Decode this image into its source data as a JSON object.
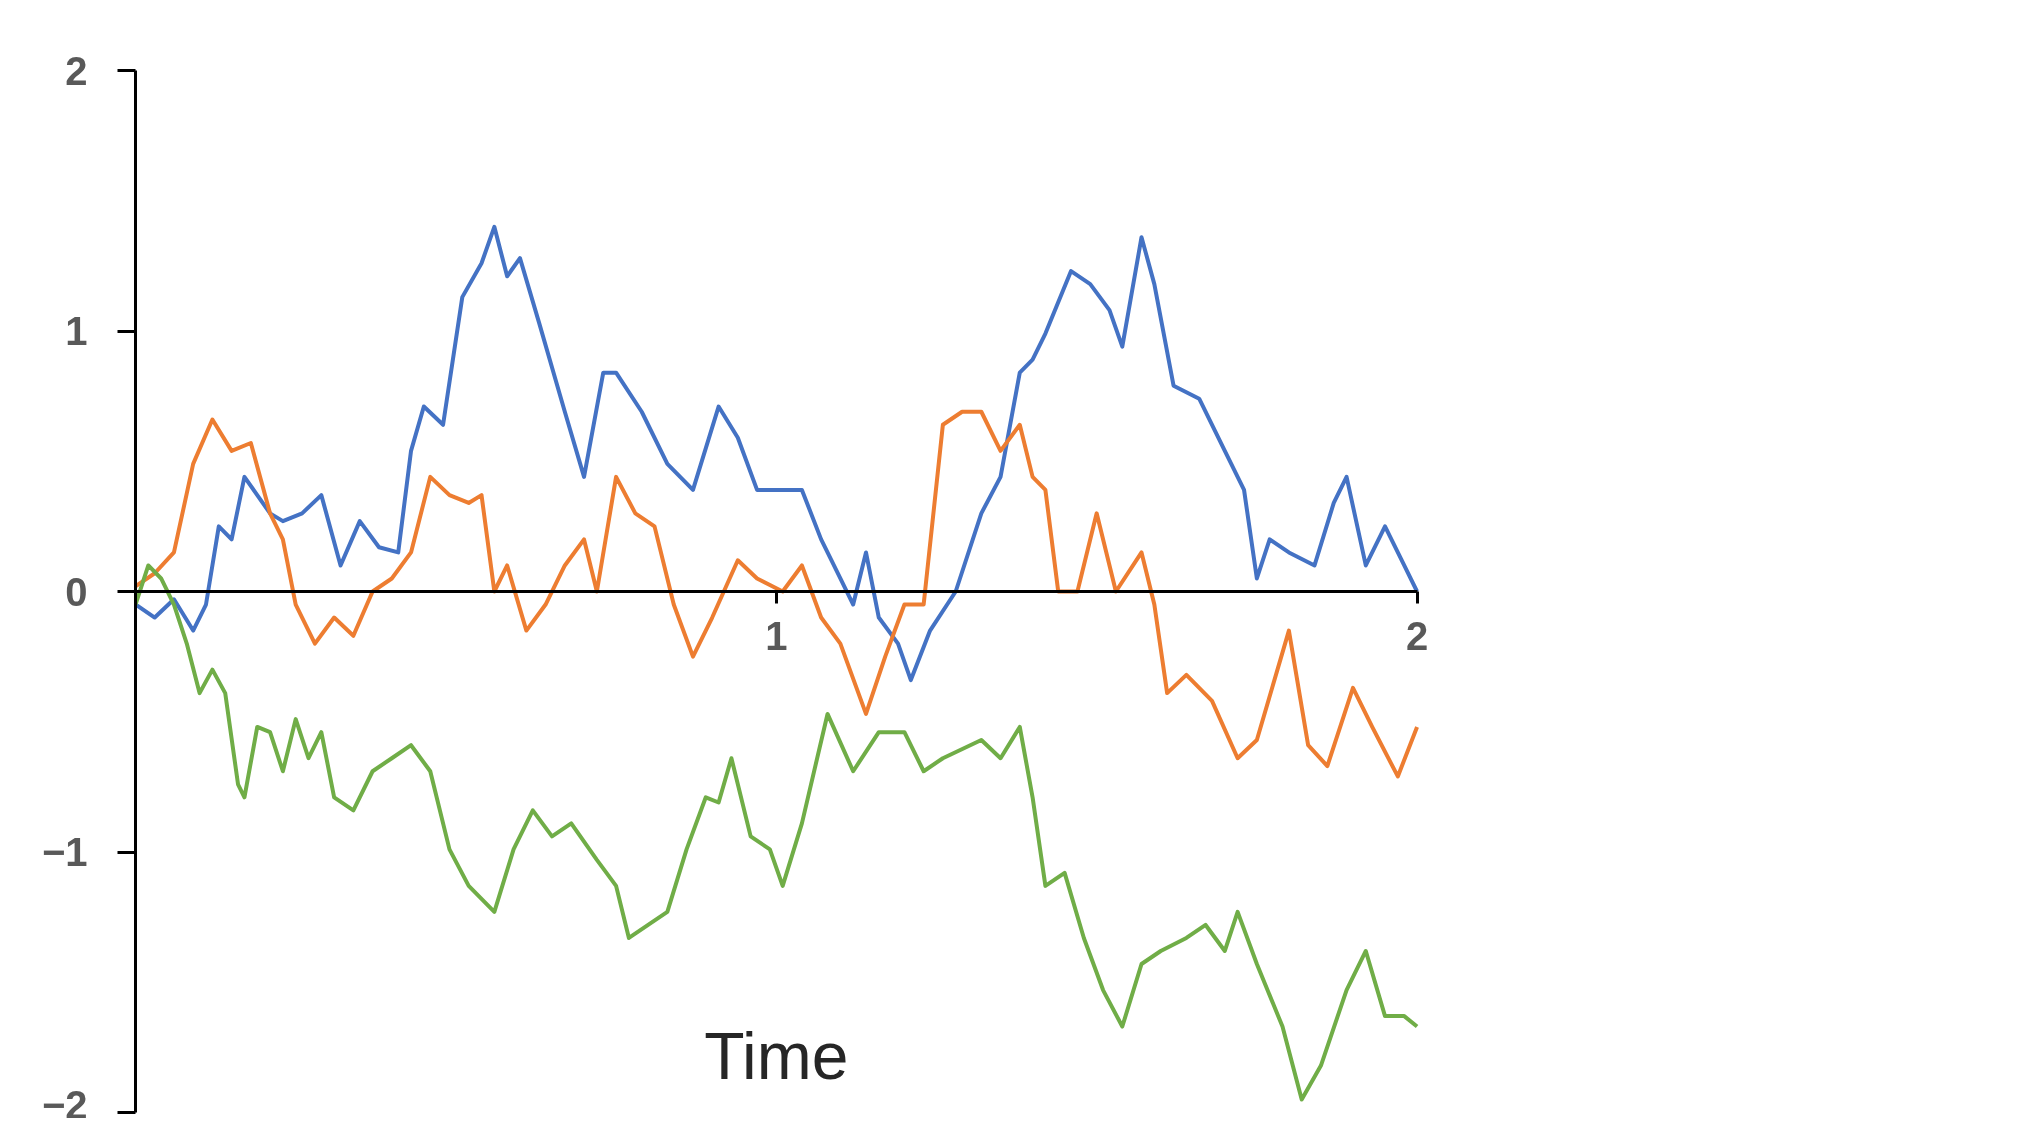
{
  "chart_data": {
    "type": "line",
    "xlabel": "Time",
    "xlim": [
      0,
      2
    ],
    "ylim": [
      -2,
      2
    ],
    "xticks": [
      1,
      2
    ],
    "yticks": [
      -2,
      -1,
      0,
      1,
      2
    ],
    "grid": false,
    "marker": "none",
    "line_style": "solid",
    "series": [
      {
        "color": "#4472c4",
        "x": [
          0,
          0.03,
          0.06,
          0.09,
          0.11,
          0.13,
          0.15,
          0.17,
          0.19,
          0.21,
          0.23,
          0.26,
          0.29,
          0.32,
          0.35,
          0.38,
          0.41,
          0.43,
          0.45,
          0.48,
          0.51,
          0.54,
          0.56,
          0.58,
          0.6,
          0.63,
          0.67,
          0.7,
          0.73,
          0.75,
          0.79,
          0.83,
          0.87,
          0.91,
          0.94,
          0.97,
          1.01,
          1.04,
          1.07,
          1.1,
          1.12,
          1.14,
          1.16,
          1.19,
          1.21,
          1.24,
          1.28,
          1.32,
          1.35,
          1.38,
          1.4,
          1.42,
          1.46,
          1.49,
          1.52,
          1.54,
          1.57,
          1.59,
          1.62,
          1.66,
          1.7,
          1.73,
          1.75,
          1.77,
          1.8,
          1.84,
          1.87,
          1.89,
          1.92,
          1.95,
          1.98,
          2.0
        ],
        "values": [
          -0.05,
          -0.1,
          -0.03,
          -0.15,
          -0.05,
          0.25,
          0.2,
          0.44,
          0.37,
          0.3,
          0.27,
          0.3,
          0.37,
          0.1,
          0.27,
          0.17,
          0.15,
          0.54,
          0.71,
          0.64,
          1.13,
          1.26,
          1.4,
          1.21,
          1.28,
          1.03,
          0.69,
          0.44,
          0.84,
          0.84,
          0.69,
          0.49,
          0.39,
          0.71,
          0.59,
          0.39,
          0.39,
          0.39,
          0.2,
          0.05,
          -0.05,
          0.15,
          -0.1,
          -0.2,
          -0.34,
          -0.15,
          0.0,
          0.3,
          0.44,
          0.84,
          0.89,
          0.99,
          1.23,
          1.18,
          1.08,
          0.94,
          1.36,
          1.18,
          0.79,
          0.74,
          0.54,
          0.39,
          0.05,
          0.2,
          0.15,
          0.1,
          0.34,
          0.44,
          0.1,
          0.25,
          0.1,
          0.0
        ]
      },
      {
        "color": "#ed7d31",
        "x": [
          0,
          0.03,
          0.06,
          0.09,
          0.12,
          0.15,
          0.18,
          0.21,
          0.23,
          0.25,
          0.28,
          0.31,
          0.34,
          0.37,
          0.4,
          0.43,
          0.46,
          0.49,
          0.52,
          0.54,
          0.56,
          0.58,
          0.61,
          0.64,
          0.67,
          0.7,
          0.72,
          0.75,
          0.78,
          0.81,
          0.84,
          0.87,
          0.9,
          0.94,
          0.97,
          1.01,
          1.04,
          1.07,
          1.1,
          1.14,
          1.17,
          1.2,
          1.23,
          1.26,
          1.29,
          1.32,
          1.35,
          1.38,
          1.4,
          1.42,
          1.44,
          1.47,
          1.5,
          1.53,
          1.57,
          1.59,
          1.61,
          1.64,
          1.68,
          1.72,
          1.75,
          1.8,
          1.83,
          1.86,
          1.9,
          1.93,
          1.97,
          2.0
        ],
        "values": [
          0.02,
          0.07,
          0.15,
          0.49,
          0.66,
          0.54,
          0.57,
          0.3,
          0.2,
          -0.05,
          -0.2,
          -0.1,
          -0.17,
          0.0,
          0.05,
          0.15,
          0.44,
          0.37,
          0.34,
          0.37,
          0.0,
          0.1,
          -0.15,
          -0.05,
          0.1,
          0.2,
          0.0,
          0.44,
          0.3,
          0.25,
          -0.05,
          -0.25,
          -0.1,
          0.12,
          0.05,
          0.0,
          0.1,
          -0.1,
          -0.2,
          -0.47,
          -0.25,
          -0.05,
          -0.05,
          0.64,
          0.69,
          0.69,
          0.54,
          0.64,
          0.44,
          0.39,
          0.0,
          0.0,
          0.3,
          0.0,
          0.15,
          -0.05,
          -0.39,
          -0.32,
          -0.42,
          -0.64,
          -0.57,
          -0.15,
          -0.59,
          -0.67,
          -0.37,
          -0.52,
          -0.71,
          -0.52
        ]
      },
      {
        "color": "#70ad47",
        "x": [
          0,
          0.02,
          0.04,
          0.06,
          0.08,
          0.1,
          0.12,
          0.14,
          0.16,
          0.17,
          0.19,
          0.21,
          0.23,
          0.25,
          0.27,
          0.29,
          0.31,
          0.34,
          0.37,
          0.4,
          0.43,
          0.46,
          0.49,
          0.52,
          0.56,
          0.59,
          0.62,
          0.65,
          0.68,
          0.72,
          0.75,
          0.77,
          0.8,
          0.83,
          0.86,
          0.89,
          0.91,
          0.93,
          0.96,
          0.99,
          1.01,
          1.04,
          1.08,
          1.12,
          1.16,
          1.2,
          1.23,
          1.26,
          1.32,
          1.35,
          1.38,
          1.4,
          1.42,
          1.45,
          1.48,
          1.51,
          1.54,
          1.57,
          1.6,
          1.64,
          1.67,
          1.7,
          1.72,
          1.75,
          1.79,
          1.82,
          1.85,
          1.89,
          1.92,
          1.95,
          1.98,
          2.0
        ],
        "values": [
          -0.05,
          0.1,
          0.05,
          -0.05,
          -0.2,
          -0.39,
          -0.3,
          -0.39,
          -0.74,
          -0.79,
          -0.52,
          -0.54,
          -0.69,
          -0.49,
          -0.64,
          -0.54,
          -0.79,
          -0.84,
          -0.69,
          -0.64,
          -0.59,
          -0.69,
          -0.99,
          -1.13,
          -1.23,
          -0.99,
          -0.84,
          -0.94,
          -0.89,
          -1.03,
          -1.13,
          -1.33,
          -1.28,
          -1.23,
          -0.99,
          -0.79,
          -0.81,
          -0.64,
          -0.94,
          -0.99,
          -1.13,
          -0.89,
          -0.47,
          -0.69,
          -0.54,
          -0.54,
          -0.69,
          -0.64,
          -0.57,
          -0.64,
          -0.52,
          -0.79,
          -1.13,
          -1.08,
          -1.33,
          -1.53,
          -1.67,
          -1.43,
          -1.38,
          -1.33,
          -1.28,
          -1.38,
          -1.23,
          -1.43,
          -1.67,
          -1.95,
          -1.82,
          -1.53,
          -1.38,
          -1.63,
          -1.63,
          -1.67
        ]
      }
    ]
  }
}
